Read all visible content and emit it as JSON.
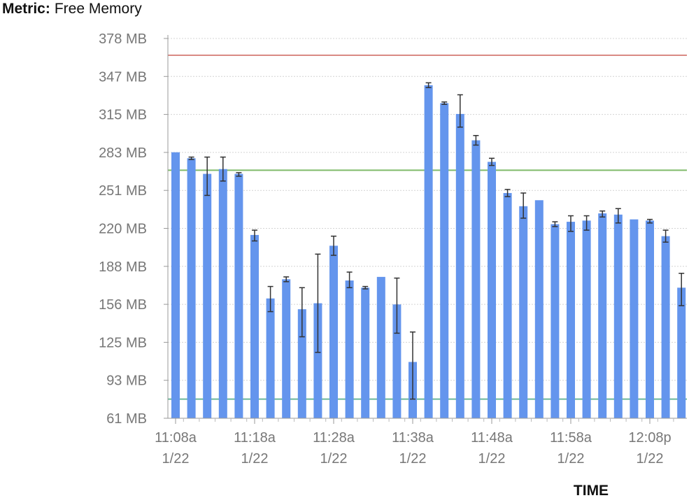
{
  "metric": {
    "label": "Metric:",
    "value": "Free Memory"
  },
  "chart_data": {
    "type": "bar",
    "title": "Free Memory",
    "xlabel": "TIME",
    "ylabel": "",
    "ylim": [
      61,
      378
    ],
    "y_ticks": [
      "61 MB",
      "93 MB",
      "125 MB",
      "156 MB",
      "188 MB",
      "220 MB",
      "251 MB",
      "283 MB",
      "315 MB",
      "347 MB",
      "378 MB"
    ],
    "x_ticks": [
      {
        "time": "11:08a",
        "date": "1/22",
        "index": 0
      },
      {
        "time": "11:18a",
        "date": "1/22",
        "index": 5
      },
      {
        "time": "11:28a",
        "date": "1/22",
        "index": 10
      },
      {
        "time": "11:38a",
        "date": "1/22",
        "index": 15
      },
      {
        "time": "11:48a",
        "date": "1/22",
        "index": 20
      },
      {
        "time": "11:58a",
        "date": "1/22",
        "index": 25
      },
      {
        "time": "12:08p",
        "date": "1/22",
        "index": 30
      }
    ],
    "grid": true,
    "units": "MB",
    "values": [
      283,
      278,
      265,
      269,
      265,
      214,
      161,
      177,
      152,
      157,
      205,
      176,
      170,
      179,
      156,
      108,
      339,
      324,
      315,
      293,
      275,
      249,
      238,
      243,
      223,
      225,
      226,
      232,
      231,
      227,
      226,
      213,
      170
    ],
    "error_low": [
      283,
      277,
      247,
      259,
      263,
      209,
      150,
      175,
      129,
      116,
      197,
      170,
      169,
      179,
      132,
      77,
      337,
      323,
      304,
      289,
      272,
      246,
      228,
      243,
      221,
      217,
      218,
      229,
      224,
      227,
      224,
      208,
      155
    ],
    "error_high": [
      283,
      279,
      279,
      279,
      266,
      218,
      171,
      179,
      170,
      198,
      213,
      183,
      171,
      179,
      178,
      133,
      341,
      325,
      331,
      297,
      278,
      252,
      249,
      243,
      225,
      230,
      230,
      234,
      236,
      227,
      227,
      218,
      182
    ],
    "reference_lines": [
      {
        "value": 364,
        "color": "#d98a84"
      },
      {
        "value": 268,
        "color": "#7fba6a"
      },
      {
        "value": 77,
        "color": "#6bb79a"
      }
    ],
    "bar_color": "#6495ed",
    "error_bar_color": "#333333"
  }
}
